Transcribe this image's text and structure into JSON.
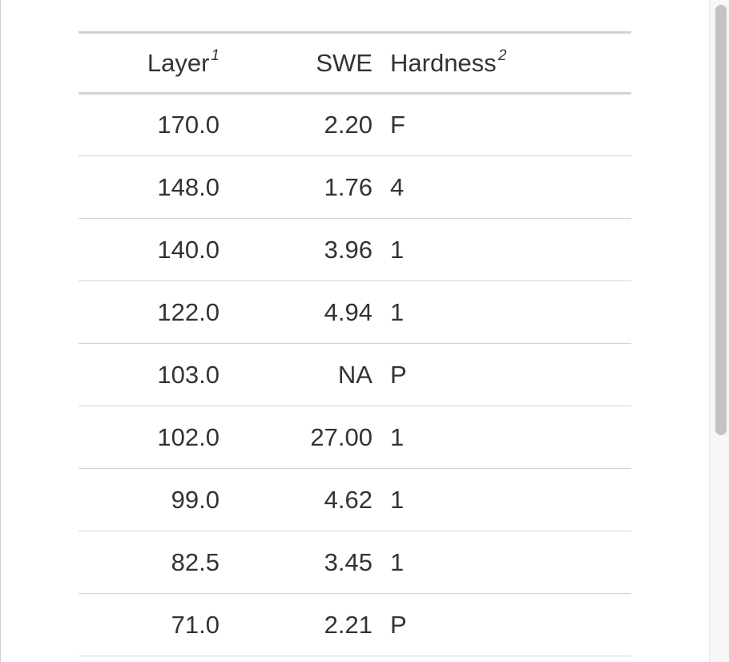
{
  "table": {
    "headers": {
      "layer": "Layer",
      "layer_note": "1",
      "swe": "SWE",
      "hardness": "Hardness",
      "hardness_note": "2"
    },
    "rows": [
      {
        "layer": "170.0",
        "swe": "2.20",
        "hardness": "F"
      },
      {
        "layer": "148.0",
        "swe": "1.76",
        "hardness": "4"
      },
      {
        "layer": "140.0",
        "swe": "3.96",
        "hardness": "1"
      },
      {
        "layer": "122.0",
        "swe": "4.94",
        "hardness": "1"
      },
      {
        "layer": "103.0",
        "swe": "NA",
        "hardness": "P"
      },
      {
        "layer": "102.0",
        "swe": "27.00",
        "hardness": "1"
      },
      {
        "layer": "99.0",
        "swe": "4.62",
        "hardness": "1"
      },
      {
        "layer": "82.5",
        "swe": "3.45",
        "hardness": "1"
      },
      {
        "layer": "71.0",
        "swe": "2.21",
        "hardness": "P"
      }
    ]
  },
  "scrollbar": {
    "position_fraction": 0.0,
    "visible_fraction": 0.66
  }
}
